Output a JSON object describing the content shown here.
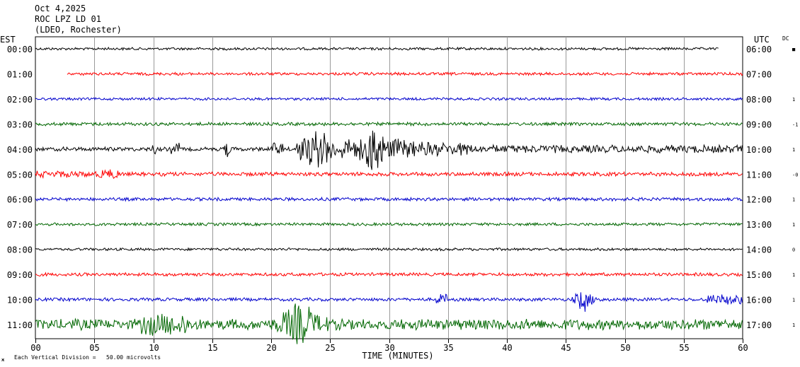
{
  "header": {
    "line1": "Oct 4,2025",
    "line2": "ROC LPZ LD 01",
    "line3": "(LDEO, Rochester)"
  },
  "left_axis_label": "EST",
  "right_axis_label": "UTC",
  "dc_label": "DC",
  "footer": {
    "scale_note": "Each Vertical Division =   50.00 microvolts",
    "corner_mark": "ж"
  },
  "chart_data": {
    "type": "line",
    "title": "",
    "xlabel": "TIME (MINUTES)",
    "ylabel": "",
    "xlim": [
      0,
      60
    ],
    "x_ticks": [
      "00",
      "05",
      "10",
      "15",
      "20",
      "25",
      "30",
      "35",
      "40",
      "45",
      "50",
      "55",
      "60"
    ],
    "grid": true,
    "colors": [
      "#000000",
      "#ff0000",
      "#0000cc",
      "#006600"
    ],
    "rows": [
      {
        "est": "00:00",
        "utc": "06:00",
        "dc": "■",
        "start_min": 0,
        "end_min": 58
      },
      {
        "est": "01:00",
        "utc": "07:00",
        "dc": "",
        "start_min": 2.7,
        "end_min": 60
      },
      {
        "est": "02:00",
        "utc": "08:00",
        "dc": "1",
        "start_min": 0,
        "end_min": 60
      },
      {
        "est": "03:00",
        "utc": "09:00",
        "dc": "-1",
        "start_min": 0,
        "end_min": 60
      },
      {
        "est": "04:00",
        "utc": "10:00",
        "dc": "1",
        "start_min": 0,
        "end_min": 60
      },
      {
        "est": "05:00",
        "utc": "11:00",
        "dc": "-0",
        "start_min": 0,
        "end_min": 60
      },
      {
        "est": "06:00",
        "utc": "12:00",
        "dc": "1",
        "start_min": 0,
        "end_min": 60
      },
      {
        "est": "07:00",
        "utc": "13:00",
        "dc": "1",
        "start_min": 0,
        "end_min": 60
      },
      {
        "est": "08:00",
        "utc": "14:00",
        "dc": "0",
        "start_min": 0,
        "end_min": 60
      },
      {
        "est": "09:00",
        "utc": "15:00",
        "dc": "1",
        "start_min": 0,
        "end_min": 60
      },
      {
        "est": "10:00",
        "utc": "16:00",
        "dc": "1",
        "start_min": 0,
        "end_min": 60
      },
      {
        "est": "11:00",
        "utc": "17:00",
        "dc": "1",
        "start_min": 0,
        "end_min": 60
      }
    ]
  }
}
